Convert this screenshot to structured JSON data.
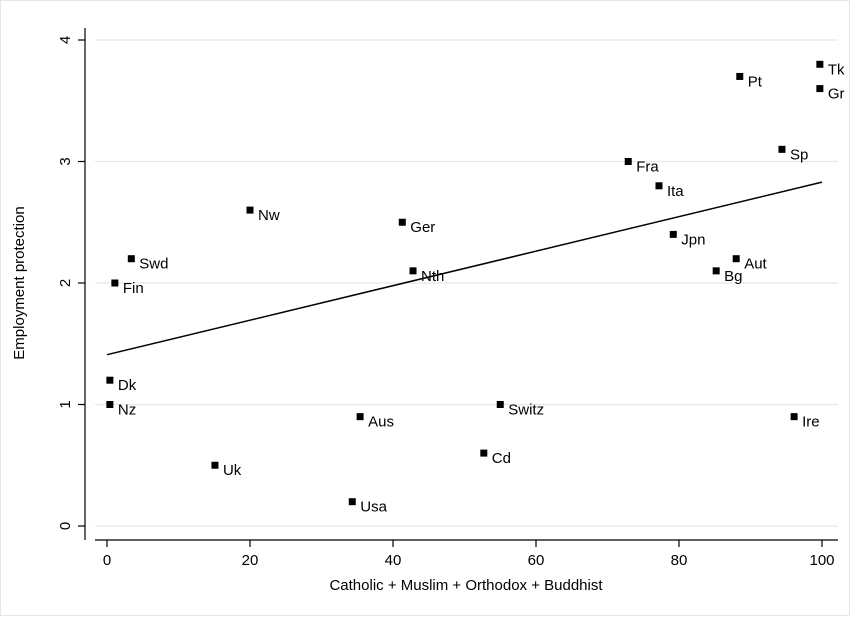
{
  "chart_data": {
    "type": "scatter",
    "x_label": "Catholic + Muslim + Orthodox + Buddhist",
    "y_label": "Employment protection",
    "labels": [
      "Tk",
      "Pt",
      "Gr",
      "Sp",
      "Fra",
      "Ita",
      "Nw",
      "Ger",
      "Jpn",
      "Aut",
      "Swd",
      "Nth",
      "Bg",
      "Fin",
      "Dk",
      "Nz",
      "Switz",
      "Aus",
      "Ire",
      "Cd",
      "Uk",
      "Usa"
    ],
    "x": [
      99.7,
      88.5,
      99.7,
      94.4,
      72.9,
      77.2,
      20.0,
      41.3,
      79.2,
      88.0,
      3.4,
      42.8,
      85.2,
      1.1,
      0.4,
      0.4,
      55.0,
      35.4,
      96.1,
      52.7,
      15.1,
      34.3
    ],
    "values": [
      3.8,
      3.7,
      3.6,
      3.1,
      3.0,
      2.8,
      2.6,
      2.5,
      2.4,
      2.2,
      2.2,
      2.1,
      2.1,
      2.0,
      1.2,
      1.0,
      1.0,
      0.9,
      0.9,
      0.6,
      0.5,
      0.2
    ],
    "color": "#000000",
    "fit_line": {
      "x": [
        0,
        100
      ],
      "y": [
        1.41,
        2.83
      ]
    },
    "xlim": [
      0,
      100
    ],
    "ylim": [
      0,
      4
    ],
    "xticks": [
      0,
      20,
      40,
      60,
      80,
      100
    ],
    "yticks": [
      0,
      1,
      2,
      3,
      4
    ],
    "grid": true
  }
}
